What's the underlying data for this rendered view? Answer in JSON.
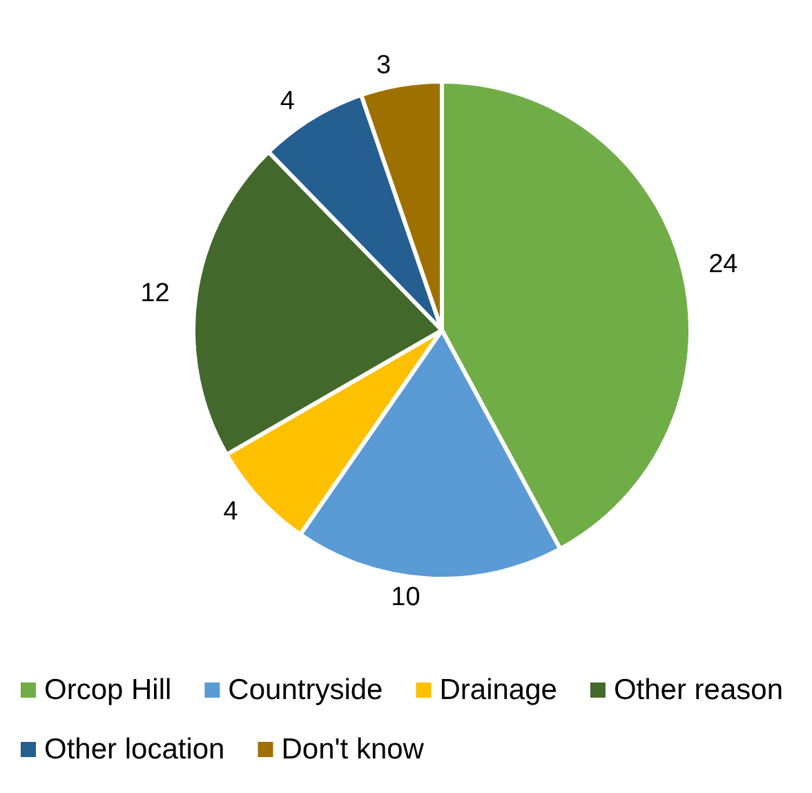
{
  "chart_data": {
    "type": "pie",
    "categories": [
      "Orcop Hill",
      "Countryside",
      "Drainage",
      "Other reason",
      "Other location",
      "Don't know"
    ],
    "values": [
      24,
      10,
      4,
      12,
      4,
      3
    ],
    "colors": [
      "#70ad47",
      "#5b9bd5",
      "#ffc000",
      "#43682b",
      "#255e91",
      "#9e7000"
    ],
    "data_labels": true,
    "legend": "bottom"
  }
}
